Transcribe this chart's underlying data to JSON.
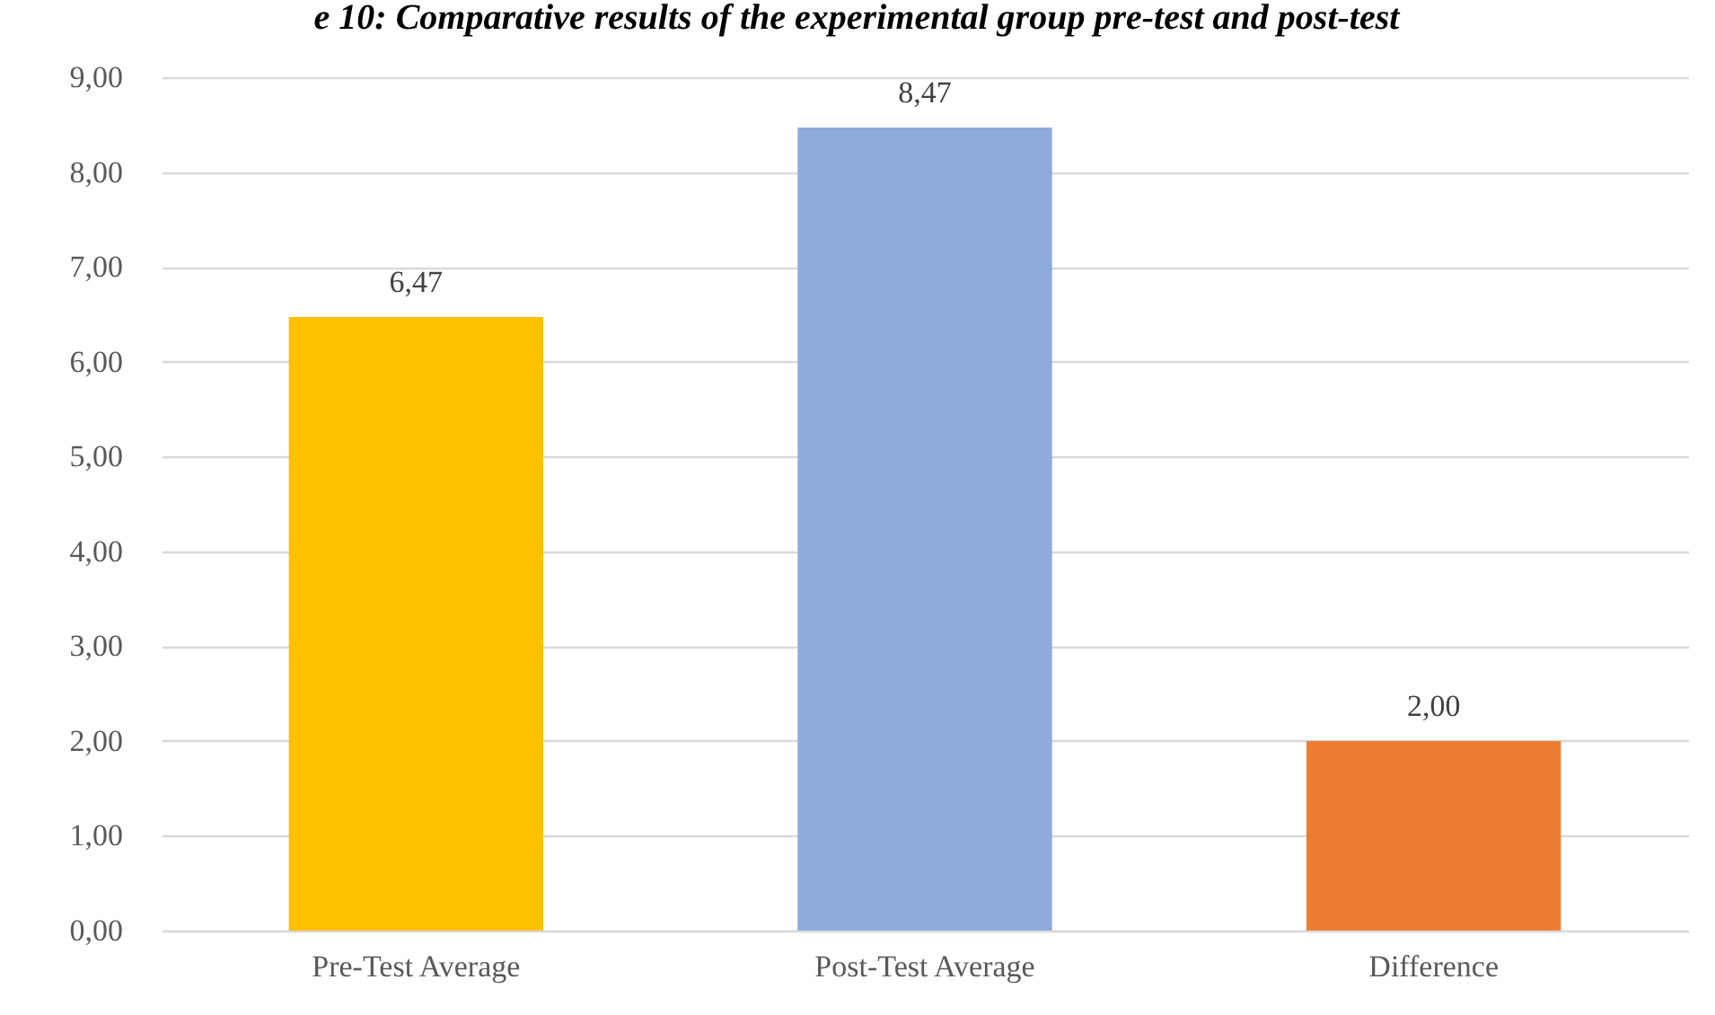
{
  "chart_data": {
    "type": "bar",
    "title": "e 10: Comparative results of the experimental group pre-test and post-test",
    "categories": [
      "Pre-Test Average",
      "Post-Test Average",
      "Difference"
    ],
    "values": [
      6.47,
      8.47,
      2.0
    ],
    "value_labels": [
      "6,47",
      "8,47",
      "2,00"
    ],
    "colors": [
      "#ffc000",
      "#8faadc",
      "#ed7d31"
    ],
    "ylim": [
      0,
      9
    ],
    "yticks": [
      {
        "value": 0,
        "label": "0,00"
      },
      {
        "value": 1,
        "label": "1,00"
      },
      {
        "value": 2,
        "label": "2,00"
      },
      {
        "value": 3,
        "label": "3,00"
      },
      {
        "value": 4,
        "label": "4,00"
      },
      {
        "value": 5,
        "label": "5,00"
      },
      {
        "value": 6,
        "label": "6,00"
      },
      {
        "value": 7,
        "label": "7,00"
      },
      {
        "value": 8,
        "label": "8,00"
      },
      {
        "value": 9,
        "label": "9,00"
      }
    ],
    "grid": "y"
  }
}
